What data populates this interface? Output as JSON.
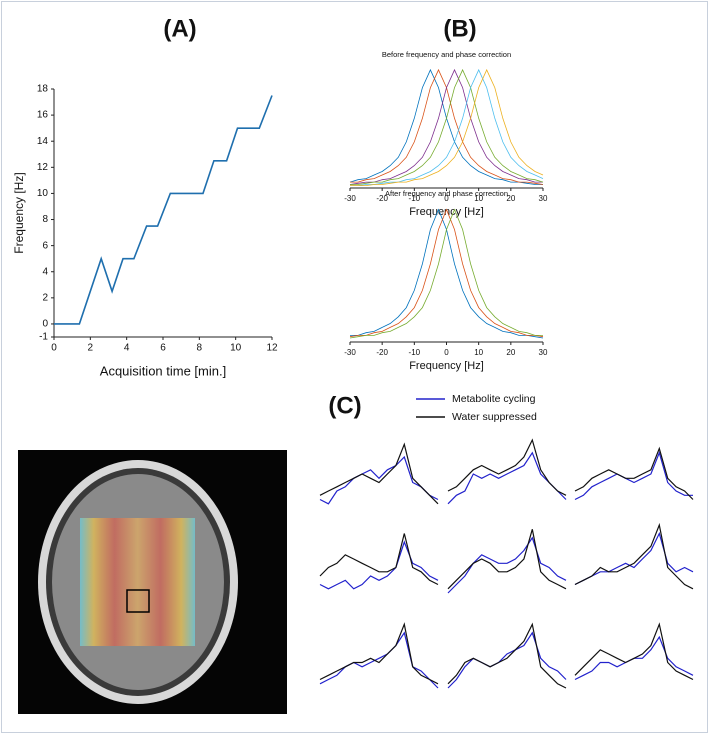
{
  "panel_labels": [
    "(A)",
    "(B)",
    "(C)"
  ],
  "chart_data": [
    {
      "type": "line",
      "xlabel": "Acquisition time [min.]",
      "ylabel": "Frequency [Hz]",
      "x": [
        0,
        1.4,
        2.6,
        3.2,
        3.8,
        4.4,
        5.1,
        5.7,
        6.4,
        8.2,
        8.8,
        9.5,
        10.1,
        11.3,
        12
      ],
      "series": [
        {
          "color": "#1f6fae",
          "values": [
            0,
            0,
            5,
            2.5,
            5,
            5,
            7.5,
            7.5,
            10,
            10,
            12.5,
            12.5,
            15,
            15,
            17.5
          ]
        }
      ],
      "xlim": [
        0,
        12
      ],
      "ylim": [
        -1,
        18
      ],
      "xticks": [
        0,
        2,
        4,
        6,
        8,
        10,
        12
      ],
      "yticks": [
        -1,
        0,
        2,
        4,
        6,
        8,
        10,
        12,
        14,
        16,
        18
      ]
    },
    {
      "type": "line",
      "title": "Before frequency  and phase correction",
      "xlabel": "Frequency [Hz]",
      "x": [
        -30,
        -27.5,
        -25,
        -22.5,
        -20,
        -17.5,
        -15,
        -12.5,
        -10,
        -7.5,
        -5,
        -2.5,
        0,
        2.5,
        5,
        7.5,
        10,
        12.5,
        15,
        17.5,
        20,
        22.5,
        25,
        27.5,
        30
      ],
      "series": [
        {
          "color": "#0072BD",
          "values": [
            0.05,
            0.07,
            0.08,
            0.11,
            0.14,
            0.19,
            0.26,
            0.39,
            0.59,
            0.85,
            1.0,
            0.85,
            0.59,
            0.39,
            0.26,
            0.19,
            0.14,
            0.11,
            0.08,
            0.07,
            0.05,
            0.05,
            0.04,
            0.03,
            0.03
          ]
        },
        {
          "color": "#D95319",
          "values": [
            0.05,
            0.05,
            0.07,
            0.08,
            0.11,
            0.14,
            0.19,
            0.26,
            0.39,
            0.59,
            0.85,
            1.0,
            0.85,
            0.59,
            0.39,
            0.26,
            0.19,
            0.14,
            0.11,
            0.08,
            0.07,
            0.05,
            0.05,
            0.04,
            0.03
          ]
        },
        {
          "color": "#7E2F8E",
          "values": [
            0.03,
            0.04,
            0.05,
            0.05,
            0.07,
            0.08,
            0.11,
            0.14,
            0.19,
            0.26,
            0.39,
            0.59,
            0.85,
            1.0,
            0.85,
            0.59,
            0.39,
            0.26,
            0.19,
            0.14,
            0.11,
            0.08,
            0.07,
            0.05,
            0.05
          ]
        },
        {
          "color": "#77AC30",
          "values": [
            0.03,
            0.03,
            0.04,
            0.05,
            0.05,
            0.07,
            0.08,
            0.11,
            0.14,
            0.19,
            0.26,
            0.39,
            0.59,
            0.85,
            1.0,
            0.85,
            0.59,
            0.39,
            0.26,
            0.19,
            0.14,
            0.11,
            0.08,
            0.07,
            0.05
          ]
        },
        {
          "color": "#4DBEEE",
          "values": [
            0.02,
            0.02,
            0.03,
            0.03,
            0.04,
            0.05,
            0.05,
            0.07,
            0.08,
            0.11,
            0.14,
            0.19,
            0.26,
            0.39,
            0.59,
            0.85,
            1.0,
            0.85,
            0.59,
            0.39,
            0.26,
            0.19,
            0.14,
            0.11,
            0.08
          ]
        },
        {
          "color": "#EDB120",
          "values": [
            0.02,
            0.02,
            0.02,
            0.03,
            0.03,
            0.04,
            0.05,
            0.05,
            0.07,
            0.08,
            0.11,
            0.14,
            0.19,
            0.26,
            0.39,
            0.59,
            0.85,
            1.0,
            0.85,
            0.59,
            0.39,
            0.26,
            0.19,
            0.14,
            0.11
          ]
        }
      ],
      "xlim": [
        -30,
        30
      ],
      "ylim": [
        0,
        1.05
      ],
      "xticks": [
        -30,
        -20,
        -10,
        0,
        10,
        20,
        30
      ]
    },
    {
      "type": "line",
      "title": "After frequency  and phase correction",
      "xlabel": "Frequency [Hz]",
      "x": [
        -30,
        -27.5,
        -25,
        -22.5,
        -20,
        -17.5,
        -15,
        -12.5,
        -10,
        -7.5,
        -5,
        -2.5,
        0,
        2.5,
        5,
        7.5,
        10,
        12.5,
        15,
        17.5,
        20,
        22.5,
        25,
        27.5,
        30
      ],
      "series": [
        {
          "color": "#0072BD",
          "values": [
            0.05,
            0.05,
            0.07,
            0.08,
            0.11,
            0.14,
            0.19,
            0.26,
            0.39,
            0.59,
            0.85,
            1.0,
            0.85,
            0.59,
            0.39,
            0.26,
            0.19,
            0.14,
            0.11,
            0.08,
            0.07,
            0.05,
            0.05,
            0.04,
            0.03
          ]
        },
        {
          "color": "#D95319",
          "values": [
            0.04,
            0.05,
            0.05,
            0.07,
            0.08,
            0.11,
            0.14,
            0.19,
            0.26,
            0.39,
            0.59,
            0.85,
            1.0,
            0.85,
            0.59,
            0.39,
            0.26,
            0.19,
            0.14,
            0.11,
            0.08,
            0.07,
            0.05,
            0.05,
            0.04
          ]
        },
        {
          "color": "#77AC30",
          "values": [
            0.03,
            0.04,
            0.05,
            0.05,
            0.07,
            0.08,
            0.11,
            0.14,
            0.19,
            0.26,
            0.39,
            0.59,
            0.85,
            1.0,
            0.85,
            0.59,
            0.39,
            0.26,
            0.19,
            0.14,
            0.11,
            0.08,
            0.07,
            0.05,
            0.05
          ]
        }
      ],
      "xlim": [
        -30,
        30
      ],
      "ylim": [
        0,
        1.05
      ],
      "xticks": [
        -30,
        -20,
        -10,
        0,
        10,
        20,
        30
      ]
    },
    {
      "type": "line-grid",
      "ylim": [
        0,
        10
      ],
      "series": [
        {
          "name": "Metabolite cycling",
          "color": "#2222cc"
        },
        {
          "name": "Water suppressed",
          "color": "#111111"
        }
      ],
      "panels": [
        {
          "values": [
            [
              3,
              2.5,
              4,
              4.5,
              5.5,
              6,
              6.5,
              5.5,
              6.5,
              7,
              8,
              5,
              4.5,
              3.5,
              3
            ],
            [
              3.5,
              4,
              4.5,
              5,
              5.5,
              6,
              5.5,
              5,
              6,
              7,
              9.5,
              5.5,
              4.5,
              3.5,
              2.5
            ]
          ]
        },
        {
          "values": [
            [
              2.5,
              3.5,
              4,
              6,
              5.5,
              6,
              5.5,
              6,
              6.5,
              7,
              8.5,
              6,
              5,
              4,
              3
            ],
            [
              4,
              4.5,
              5.5,
              6.5,
              7,
              6.5,
              6,
              6.5,
              7,
              8,
              10,
              6.5,
              5,
              4,
              3.5
            ]
          ]
        },
        {
          "values": [
            [
              3,
              3.5,
              4.5,
              5,
              5.5,
              6,
              5.5,
              5,
              5.5,
              6,
              8.5,
              5,
              4,
              3.5,
              3.5
            ],
            [
              4,
              4.5,
              5.5,
              6,
              6.5,
              6,
              5.5,
              5.5,
              6,
              6.5,
              9,
              5.5,
              4.5,
              4,
              3
            ]
          ]
        },
        {
          "values": [
            [
              3,
              2.5,
              3,
              3.5,
              2.5,
              3,
              4,
              3.5,
              4,
              5,
              8,
              5.5,
              5,
              4,
              3.5
            ],
            [
              4,
              5,
              5.5,
              6.5,
              6,
              5.5,
              5,
              4.5,
              4.5,
              5,
              9,
              5,
              4.5,
              3.5,
              3
            ]
          ]
        },
        {
          "values": [
            [
              2,
              3,
              4,
              5.5,
              6.5,
              6,
              5.5,
              5.5,
              6,
              7,
              8.5,
              5.5,
              5,
              4,
              3.5
            ],
            [
              2.5,
              3.5,
              4.5,
              5.5,
              6,
              5.5,
              4.5,
              4.5,
              5,
              6,
              9.5,
              4.5,
              3.5,
              3,
              2.5
            ]
          ]
        },
        {
          "values": [
            [
              3,
              3.5,
              4,
              4.5,
              4.5,
              5,
              5.5,
              5,
              6,
              7,
              9,
              5.5,
              4.5,
              5,
              4.5
            ],
            [
              3,
              3.5,
              4,
              5,
              4.5,
              4.5,
              5,
              5.5,
              6.5,
              7.5,
              10,
              5,
              4,
              3,
              2.5
            ]
          ]
        },
        {
          "values": [
            [
              2.5,
              3,
              3.5,
              4.5,
              5,
              4.5,
              5,
              5.5,
              6,
              7,
              8.5,
              4.5,
              4,
              3,
              2
            ],
            [
              3,
              3.5,
              4,
              4.5,
              5,
              5,
              5.5,
              5,
              6,
              7,
              9.5,
              4.5,
              3.5,
              3,
              2.5
            ]
          ]
        },
        {
          "values": [
            [
              2,
              3,
              4.5,
              5.5,
              5,
              4.5,
              5,
              6,
              6.5,
              7,
              8.5,
              5.5,
              4.5,
              4,
              3
            ],
            [
              2.5,
              3.5,
              5,
              5.5,
              5,
              4.5,
              5,
              5.5,
              6.5,
              7.5,
              9.5,
              4.5,
              3.5,
              2.5,
              2
            ]
          ]
        },
        {
          "values": [
            [
              3,
              3.5,
              4,
              5,
              5,
              4.5,
              5,
              5.5,
              5.5,
              6.5,
              8,
              5.5,
              4.5,
              4,
              3.5
            ],
            [
              3.5,
              4.5,
              5.5,
              6.5,
              6,
              5.5,
              5,
              5.5,
              6,
              7,
              9.5,
              5,
              4,
              3.5,
              3
            ]
          ]
        }
      ]
    }
  ]
}
